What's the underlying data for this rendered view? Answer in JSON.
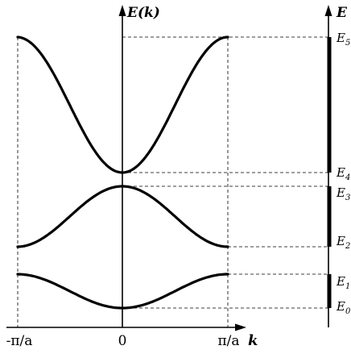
{
  "figure": {
    "axis_title_energy": "E(k)",
    "axis_title_k": "k",
    "band_axis_title": "E",
    "k_ticks": [
      "-π/a",
      "0",
      "π/a"
    ],
    "energy_levels": [
      "E5",
      "E4",
      "E3",
      "E2",
      "E1",
      "E0"
    ],
    "energy_level_labels": [
      {
        "base": "E",
        "sub": "5"
      },
      {
        "base": "E",
        "sub": "4"
      },
      {
        "base": "E",
        "sub": "3"
      },
      {
        "base": "E",
        "sub": "2"
      },
      {
        "base": "E",
        "sub": "1"
      },
      {
        "base": "E",
        "sub": "0"
      }
    ],
    "bands": [
      {
        "name": "band-1",
        "curvature": "cosine minimum at k=0",
        "bottom": "E0",
        "top": "E1"
      },
      {
        "name": "band-2",
        "curvature": "cosine maximum at k=0",
        "bottom": "E2",
        "top": "E3"
      },
      {
        "name": "band-3",
        "curvature": "cosine minimum at k=0",
        "bottom": "E4",
        "top": "E5"
      }
    ],
    "colors": {
      "ink": "#000000",
      "background": "#ffffff"
    }
  }
}
